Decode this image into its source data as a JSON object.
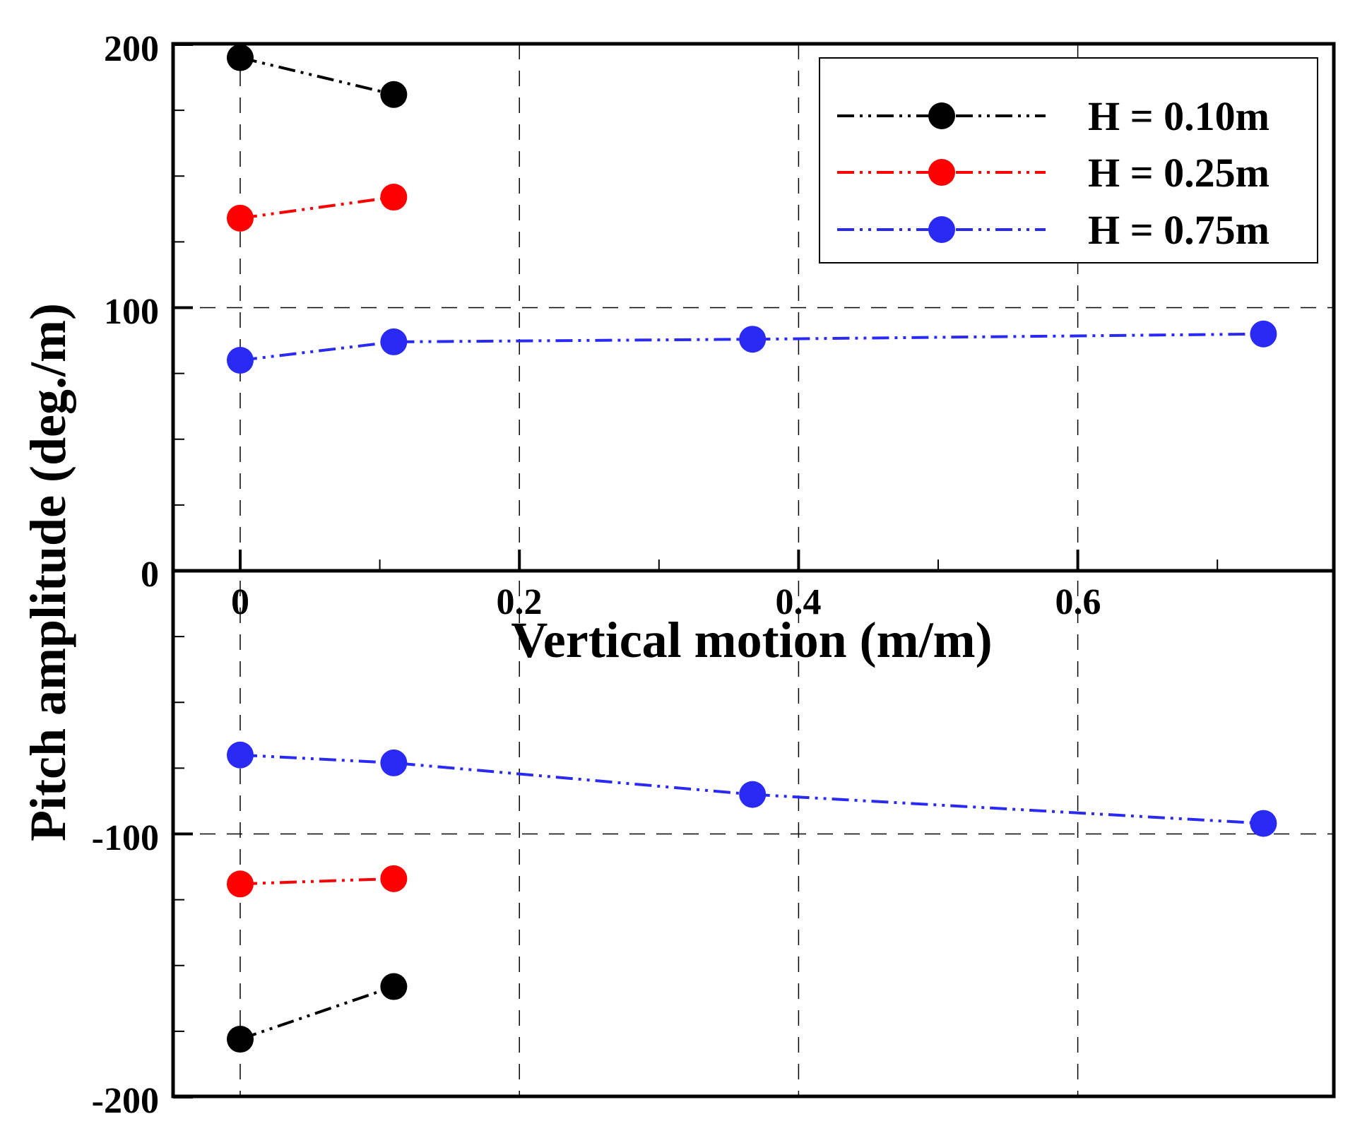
{
  "chart_data": {
    "type": "line",
    "title": "",
    "xlabel": "Vertical motion (m/m)",
    "ylabel": "Pitch amplitude (deg./m)",
    "xlim": [
      -0.05,
      0.78
    ],
    "ylim": [
      -200,
      200
    ],
    "x_ticks": [
      0,
      0.2,
      0.4,
      0.6
    ],
    "x_tick_labels": [
      "0",
      "0.2",
      "0.4",
      "0.6"
    ],
    "y_ticks": [
      200,
      100,
      0,
      -100,
      -200
    ],
    "y_tick_labels": [
      "200",
      "100",
      "0",
      "-100",
      "-200"
    ],
    "grid": true,
    "legend_position": "top-right",
    "series": [
      {
        "name": "H = 0.10m",
        "color": "#000000",
        "upper": [
          {
            "x": 0,
            "y": 195
          },
          {
            "x": 0.11,
            "y": 181
          }
        ],
        "lower": [
          {
            "x": 0,
            "y": -178
          },
          {
            "x": 0.11,
            "y": -158
          }
        ]
      },
      {
        "name": "H = 0.25m",
        "color": "#ff0000",
        "upper": [
          {
            "x": 0,
            "y": 134
          },
          {
            "x": 0.11,
            "y": 142
          }
        ],
        "lower": [
          {
            "x": 0,
            "y": -119
          },
          {
            "x": 0.11,
            "y": -117
          }
        ]
      },
      {
        "name": "H = 0.75m",
        "color": "#2a2af5",
        "upper": [
          {
            "x": 0,
            "y": 80
          },
          {
            "x": 0.11,
            "y": 87
          },
          {
            "x": 0.367,
            "y": 88
          },
          {
            "x": 0.733,
            "y": 90
          }
        ],
        "lower": [
          {
            "x": 0,
            "y": -70
          },
          {
            "x": 0.11,
            "y": -73
          },
          {
            "x": 0.367,
            "y": -85
          },
          {
            "x": 0.733,
            "y": -96
          }
        ]
      }
    ]
  }
}
